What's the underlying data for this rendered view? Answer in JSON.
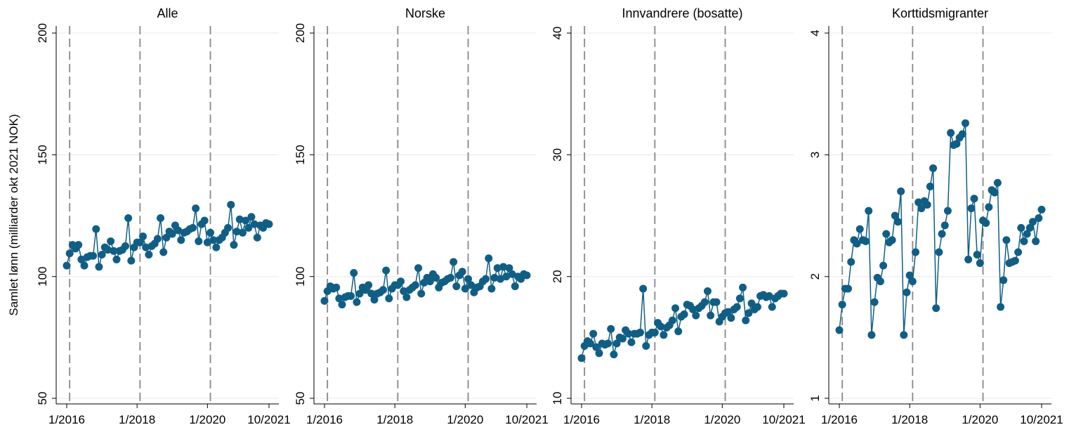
{
  "chart_data": [
    {
      "type": "line",
      "title": "Alle",
      "ylabel": "Samlet lønn (milliarder okt 2021 NOK)",
      "x": [
        "1/2016",
        "2/2016",
        "3/2016",
        "4/2016",
        "5/2016",
        "6/2016",
        "7/2016",
        "8/2016",
        "9/2016",
        "10/2016",
        "11/2016",
        "12/2016",
        "1/2017",
        "2/2017",
        "3/2017",
        "4/2017",
        "5/2017",
        "6/2017",
        "7/2017",
        "8/2017",
        "9/2017",
        "10/2017",
        "11/2017",
        "12/2017",
        "1/2018",
        "2/2018",
        "3/2018",
        "4/2018",
        "5/2018",
        "6/2018",
        "7/2018",
        "8/2018",
        "9/2018",
        "10/2018",
        "11/2018",
        "12/2018",
        "1/2019",
        "2/2019",
        "3/2019",
        "4/2019",
        "5/2019",
        "6/2019",
        "7/2019",
        "8/2019",
        "9/2019",
        "10/2019",
        "11/2019",
        "12/2019",
        "1/2020",
        "2/2020",
        "3/2020",
        "4/2020",
        "5/2020",
        "6/2020",
        "7/2020",
        "8/2020",
        "9/2020",
        "10/2020",
        "11/2020",
        "12/2020",
        "1/2021",
        "2/2021",
        "3/2021",
        "4/2021",
        "5/2021",
        "6/2021",
        "7/2021",
        "8/2021",
        "9/2021",
        "10/2021"
      ],
      "series": [
        {
          "color": "#115e85",
          "values": [
            104.5,
            109.5,
            113,
            111.5,
            113,
            107,
            104.5,
            108,
            108.5,
            108.5,
            119.5,
            104,
            109,
            112,
            111,
            114.5,
            110.5,
            107,
            110.5,
            111,
            112.5,
            124,
            106.5,
            112,
            114,
            114,
            116.5,
            112,
            109,
            112.5,
            113.5,
            115.5,
            124,
            110,
            116,
            118.5,
            117.5,
            121,
            119,
            115,
            118,
            118.5,
            119.5,
            120,
            128,
            114.5,
            121.5,
            123,
            114,
            118,
            115,
            112,
            115,
            116,
            118,
            120,
            129.5,
            113,
            118.5,
            123.5,
            118,
            123,
            120,
            124.5,
            121.5,
            116,
            121,
            120,
            122,
            121.5
          ]
        }
      ],
      "ylim": [
        47.7,
        202.9
      ],
      "yticks": [
        50,
        100,
        150,
        200
      ],
      "xticks": [
        "1/2016",
        "1/2018",
        "1/2020",
        "10/2021"
      ],
      "vlines": [
        "2/2016",
        "2/2018",
        "2/2020"
      ],
      "grid": true,
      "markers": true
    },
    {
      "type": "line",
      "title": "Norske",
      "x": [
        "1/2016",
        "2/2016",
        "3/2016",
        "4/2016",
        "5/2016",
        "6/2016",
        "7/2016",
        "8/2016",
        "9/2016",
        "10/2016",
        "11/2016",
        "12/2016",
        "1/2017",
        "2/2017",
        "3/2017",
        "4/2017",
        "5/2017",
        "6/2017",
        "7/2017",
        "8/2017",
        "9/2017",
        "10/2017",
        "11/2017",
        "12/2017",
        "1/2018",
        "2/2018",
        "3/2018",
        "4/2018",
        "5/2018",
        "6/2018",
        "7/2018",
        "8/2018",
        "9/2018",
        "10/2018",
        "11/2018",
        "12/2018",
        "1/2019",
        "2/2019",
        "3/2019",
        "4/2019",
        "5/2019",
        "6/2019",
        "7/2019",
        "8/2019",
        "9/2019",
        "10/2019",
        "11/2019",
        "12/2019",
        "1/2020",
        "2/2020",
        "3/2020",
        "4/2020",
        "5/2020",
        "6/2020",
        "7/2020",
        "8/2020",
        "9/2020",
        "10/2020",
        "11/2020",
        "12/2020",
        "1/2021",
        "2/2021",
        "3/2021",
        "4/2021",
        "5/2021",
        "6/2021",
        "7/2021",
        "8/2021",
        "9/2021",
        "10/2021"
      ],
      "series": [
        {
          "color": "#115e85",
          "values": [
            90,
            94,
            96,
            95,
            95.5,
            91,
            88.5,
            91.5,
            92,
            92,
            101.5,
            89.5,
            93,
            95.5,
            94.5,
            96.5,
            93,
            90.5,
            93,
            93.5,
            94.5,
            102.5,
            91,
            95,
            96.5,
            96.5,
            98,
            94,
            91.5,
            94.5,
            95.5,
            96.5,
            103.5,
            93,
            97.5,
            99.5,
            98,
            101,
            99.5,
            95.5,
            97.5,
            98,
            99,
            99.5,
            106,
            96,
            100.5,
            102,
            95,
            99,
            96.5,
            93.5,
            95.5,
            96,
            98,
            99,
            107.5,
            95,
            99.5,
            103.5,
            99,
            104,
            100,
            103.5,
            101,
            96,
            100,
            99,
            101,
            100.5
          ]
        }
      ],
      "ylim": [
        47.7,
        202.9
      ],
      "yticks": [
        50,
        100,
        150,
        200
      ],
      "xticks": [
        "1/2016",
        "1/2018",
        "1/2020",
        "10/2021"
      ],
      "vlines": [
        "2/2016",
        "2/2018",
        "2/2020"
      ],
      "grid": true,
      "markers": true
    },
    {
      "type": "line",
      "title": "Innvandrere (bosatte)",
      "x": [
        "1/2016",
        "2/2016",
        "3/2016",
        "4/2016",
        "5/2016",
        "6/2016",
        "7/2016",
        "8/2016",
        "9/2016",
        "10/2016",
        "11/2016",
        "12/2016",
        "1/2017",
        "2/2017",
        "3/2017",
        "4/2017",
        "5/2017",
        "6/2017",
        "7/2017",
        "8/2017",
        "9/2017",
        "10/2017",
        "11/2017",
        "12/2017",
        "1/2018",
        "2/2018",
        "3/2018",
        "4/2018",
        "5/2018",
        "6/2018",
        "7/2018",
        "8/2018",
        "9/2018",
        "10/2018",
        "11/2018",
        "12/2018",
        "1/2019",
        "2/2019",
        "3/2019",
        "4/2019",
        "5/2019",
        "6/2019",
        "7/2019",
        "8/2019",
        "9/2019",
        "10/2019",
        "11/2019",
        "12/2019",
        "1/2020",
        "2/2020",
        "3/2020",
        "4/2020",
        "5/2020",
        "6/2020",
        "7/2020",
        "8/2020",
        "9/2020",
        "10/2020",
        "11/2020",
        "12/2020",
        "1/2021",
        "2/2021",
        "3/2021",
        "4/2021",
        "5/2021",
        "6/2021",
        "7/2021",
        "8/2021",
        "9/2021",
        "10/2021"
      ],
      "series": [
        {
          "color": "#115e85",
          "values": [
            13.3,
            14.3,
            14.7,
            14.5,
            15.3,
            14.2,
            13.7,
            14.5,
            14.4,
            14.5,
            15.7,
            13.6,
            14.5,
            15,
            14.9,
            15.6,
            15.3,
            14.6,
            15.3,
            15.3,
            15.4,
            19,
            14.3,
            15.2,
            15.4,
            15.4,
            16.2,
            15.9,
            15.2,
            15.8,
            16,
            16.4,
            17.4,
            15.5,
            16.7,
            16.9,
            17.7,
            17.6,
            17.3,
            16.8,
            17.4,
            17.6,
            17.9,
            18.8,
            16.8,
            17.9,
            17.9,
            16.3,
            16.7,
            17,
            17.1,
            16.6,
            17.3,
            17.5,
            18.2,
            19.1,
            16.4,
            17,
            17.8,
            17.3,
            17.5,
            18.4,
            18.5,
            18.3,
            18.4,
            17.5,
            18.2,
            18.4,
            18.6,
            18.6
          ]
        }
      ],
      "ylim": [
        9.54,
        40.58
      ],
      "yticks": [
        10,
        20,
        30,
        40
      ],
      "xticks": [
        "1/2016",
        "1/2018",
        "1/2020",
        "10/2021"
      ],
      "vlines": [
        "2/2016",
        "2/2018",
        "2/2020"
      ],
      "grid": true,
      "markers": true
    },
    {
      "type": "line",
      "title": "Korttidsmigranter",
      "x": [
        "1/2016",
        "2/2016",
        "3/2016",
        "4/2016",
        "5/2016",
        "6/2016",
        "7/2016",
        "8/2016",
        "9/2016",
        "10/2016",
        "11/2016",
        "12/2016",
        "1/2017",
        "2/2017",
        "3/2017",
        "4/2017",
        "5/2017",
        "6/2017",
        "7/2017",
        "8/2017",
        "9/2017",
        "10/2017",
        "11/2017",
        "12/2017",
        "1/2018",
        "2/2018",
        "3/2018",
        "4/2018",
        "5/2018",
        "6/2018",
        "7/2018",
        "8/2018",
        "9/2018",
        "10/2018",
        "11/2018",
        "12/2018",
        "1/2019",
        "2/2019",
        "3/2019",
        "4/2019",
        "5/2019",
        "6/2019",
        "7/2019",
        "8/2019",
        "9/2019",
        "10/2019",
        "11/2019",
        "12/2019",
        "1/2020",
        "2/2020",
        "3/2020",
        "4/2020",
        "5/2020",
        "6/2020",
        "7/2020",
        "8/2020",
        "9/2020",
        "10/2020",
        "11/2020",
        "12/2020",
        "1/2021",
        "2/2021",
        "3/2021",
        "4/2021",
        "5/2021",
        "6/2021",
        "7/2021",
        "8/2021",
        "9/2021",
        "10/2021"
      ],
      "series": [
        {
          "color": "#115e85",
          "values": [
            1.56,
            1.77,
            1.9,
            1.9,
            2.12,
            2.3,
            2.27,
            2.39,
            2.3,
            2.29,
            2.54,
            1.52,
            1.79,
            1.99,
            1.96,
            2.09,
            2.35,
            2.28,
            2.3,
            2.5,
            2.45,
            2.7,
            1.52,
            1.87,
            2.01,
            1.96,
            2.2,
            2.61,
            2.56,
            2.62,
            2.59,
            2.74,
            2.89,
            1.74,
            2.2,
            2.35,
            2.42,
            2.54,
            3.18,
            3.08,
            3.09,
            3.14,
            3.17,
            3.26,
            2.14,
            2.56,
            2.64,
            2.18,
            2.11,
            2.46,
            2.44,
            2.57,
            2.71,
            2.69,
            2.77,
            1.75,
            1.97,
            2.3,
            2.11,
            2.12,
            2.13,
            2.2,
            2.4,
            2.29,
            2.35,
            2.4,
            2.45,
            2.29,
            2.48,
            2.55
          ]
        }
      ],
      "ylim": [
        0.954,
        4.058
      ],
      "yticks": [
        1,
        2,
        3,
        4
      ],
      "xticks": [
        "1/2016",
        "1/2018",
        "1/2020",
        "10/2021"
      ],
      "vlines": [
        "2/2016",
        "2/2018",
        "2/2020"
      ],
      "grid": true,
      "markers": true
    }
  ]
}
